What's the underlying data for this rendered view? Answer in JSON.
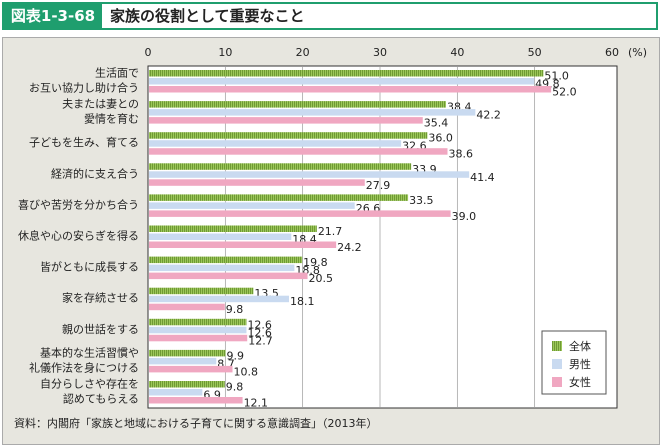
{
  "header": {
    "figure_no": "図表1-3-68",
    "title": "家族の役割として重要なこと"
  },
  "source": "資料：内閣府「家族と地域における子育てに関する意識調査」（2013年）",
  "chart_data": {
    "type": "bar",
    "orientation": "horizontal",
    "unit": "(%)",
    "xlim": [
      0,
      60
    ],
    "ticks": [
      0,
      10,
      20,
      30,
      40,
      50,
      60
    ],
    "grid": true,
    "legend_position": "bottom-right",
    "categories": [
      [
        "生活面で",
        "お互い協力し助け合う"
      ],
      [
        "夫または妻との",
        "愛情を育む"
      ],
      [
        "子どもを生み、育てる"
      ],
      [
        "経済的に支え合う"
      ],
      [
        "喜びや苦労を分かち合う"
      ],
      [
        "休息や心の安らぎを得る"
      ],
      [
        "皆がともに成長する"
      ],
      [
        "家を存続させる"
      ],
      [
        "親の世話をする"
      ],
      [
        "基本的な生活習慣や",
        "礼儀作法を身につける"
      ],
      [
        "自分らしさや存在を",
        "認めてもらえる"
      ]
    ],
    "series": [
      {
        "name": "全体",
        "color": "#8fbf4a",
        "values": [
          51.0,
          38.4,
          36.0,
          33.9,
          33.5,
          21.7,
          19.8,
          13.5,
          12.6,
          9.9,
          9.8
        ]
      },
      {
        "name": "男性",
        "color": "#c9daf0",
        "values": [
          49.8,
          42.2,
          32.6,
          41.4,
          26.6,
          18.4,
          18.8,
          18.1,
          12.6,
          8.7,
          6.9
        ]
      },
      {
        "name": "女性",
        "color": "#f0a7c1",
        "values": [
          52.0,
          35.4,
          38.6,
          27.9,
          39.0,
          24.2,
          20.5,
          9.8,
          12.7,
          10.8,
          12.1
        ]
      }
    ]
  }
}
